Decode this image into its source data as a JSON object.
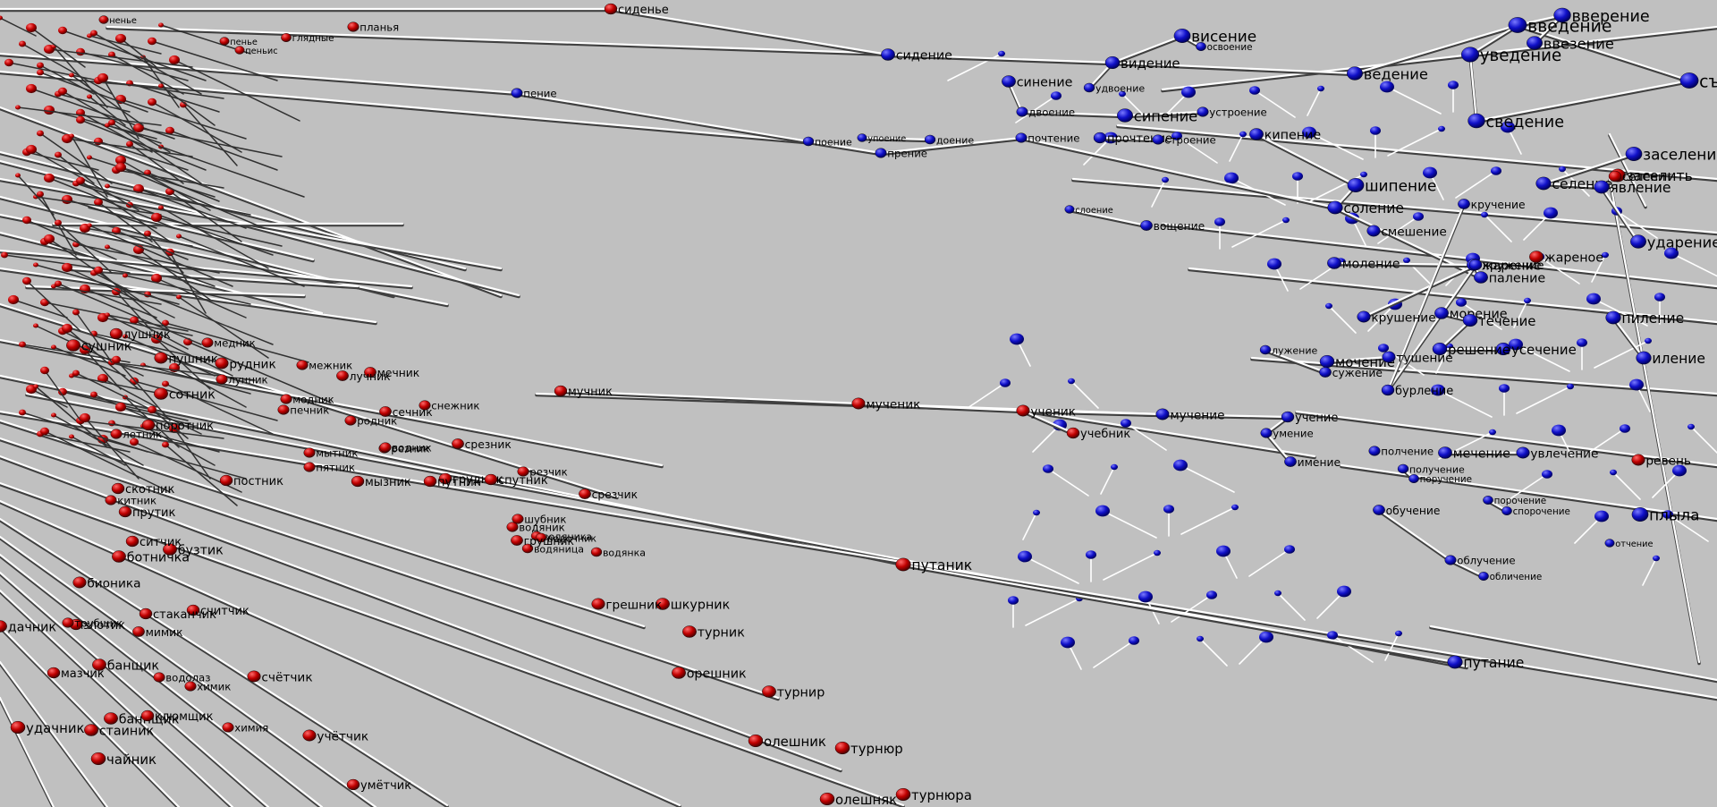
{
  "colors": {
    "background": "#c0c0c0",
    "red_node": "#d80000",
    "blue_node": "#1616d0",
    "edge": "#ffffff",
    "edge_shadow": "#404040"
  },
  "nodes": [
    {
      "id": "n1",
      "label": "сиденье",
      "color": "red"
    },
    {
      "id": "n2",
      "label": "сидение",
      "color": "blue"
    },
    {
      "id": "n3",
      "label": "пение",
      "color": "blue"
    },
    {
      "id": "n4",
      "label": "поение",
      "color": "blue"
    },
    {
      "id": "n5",
      "label": "упоение",
      "color": "blue"
    },
    {
      "id": "n6",
      "label": "доение",
      "color": "blue"
    },
    {
      "id": "n7",
      "label": "прение",
      "color": "blue"
    },
    {
      "id": "n8",
      "label": "синение",
      "color": "blue"
    },
    {
      "id": "n9",
      "label": "двоение",
      "color": "blue"
    },
    {
      "id": "n10",
      "label": "видение",
      "color": "blue"
    },
    {
      "id": "n11",
      "label": "висение",
      "color": "blue"
    },
    {
      "id": "n12",
      "label": "освоение",
      "color": "blue"
    },
    {
      "id": "n13",
      "label": "удвоение",
      "color": "blue"
    },
    {
      "id": "n14",
      "label": "сипение",
      "color": "blue"
    },
    {
      "id": "n15",
      "label": "устроение",
      "color": "blue"
    },
    {
      "id": "n16",
      "label": "почтение",
      "color": "blue"
    },
    {
      "id": "n17",
      "label": "прочтение",
      "color": "blue"
    },
    {
      "id": "n18",
      "label": "строение",
      "color": "blue"
    },
    {
      "id": "n19",
      "label": "слоение",
      "color": "blue"
    },
    {
      "id": "n20",
      "label": "вощение",
      "color": "blue"
    },
    {
      "id": "n21",
      "label": "ведение",
      "color": "blue"
    },
    {
      "id": "n22",
      "label": "введение",
      "color": "blue"
    },
    {
      "id": "n23",
      "label": "уведение",
      "color": "blue"
    },
    {
      "id": "n24",
      "label": "вверение",
      "color": "blue"
    },
    {
      "id": "n25",
      "label": "ввезение",
      "color": "blue"
    },
    {
      "id": "n26",
      "label": "съедение",
      "color": "blue"
    },
    {
      "id": "n27",
      "label": "сведение",
      "color": "blue"
    },
    {
      "id": "n28",
      "label": "кипение",
      "color": "blue"
    },
    {
      "id": "n29",
      "label": "шипение",
      "color": "blue"
    },
    {
      "id": "n30",
      "label": "соление",
      "color": "blue"
    },
    {
      "id": "n31",
      "label": "паление",
      "color": "blue"
    },
    {
      "id": "n32",
      "label": "моление",
      "color": "blue"
    },
    {
      "id": "n33",
      "label": "жарение",
      "color": "blue"
    },
    {
      "id": "n34",
      "label": "смешение",
      "color": "blue"
    },
    {
      "id": "n35",
      "label": "морение",
      "color": "blue"
    },
    {
      "id": "n36",
      "label": "течение",
      "color": "blue"
    },
    {
      "id": "n37",
      "label": "усечение",
      "color": "blue"
    },
    {
      "id": "n38",
      "label": "решение",
      "color": "blue"
    },
    {
      "id": "n39",
      "label": "мочение",
      "color": "blue"
    },
    {
      "id": "n40",
      "label": "тушение",
      "color": "blue"
    },
    {
      "id": "n41",
      "label": "сужение",
      "color": "blue"
    },
    {
      "id": "n42",
      "label": "лужение",
      "color": "blue"
    },
    {
      "id": "n43",
      "label": "мучение",
      "color": "blue"
    },
    {
      "id": "n44",
      "label": "учение",
      "color": "blue"
    },
    {
      "id": "n45",
      "label": "умение",
      "color": "blue"
    },
    {
      "id": "n46",
      "label": "имение",
      "color": "blue"
    },
    {
      "id": "n47",
      "label": "полчение",
      "color": "blue"
    },
    {
      "id": "n48",
      "label": "мечение",
      "color": "blue"
    },
    {
      "id": "n49",
      "label": "увлечение",
      "color": "blue"
    },
    {
      "id": "n50",
      "label": "получение",
      "color": "blue"
    },
    {
      "id": "n51",
      "label": "поручение",
      "color": "blue"
    },
    {
      "id": "n52",
      "label": "обучение",
      "color": "blue"
    },
    {
      "id": "n53",
      "label": "порочение",
      "color": "blue"
    },
    {
      "id": "n54",
      "label": "спорочение",
      "color": "blue"
    },
    {
      "id": "n55",
      "label": "облучение",
      "color": "blue"
    },
    {
      "id": "n56",
      "label": "обличение",
      "color": "blue"
    },
    {
      "id": "n57",
      "label": "путание",
      "color": "blue"
    },
    {
      "id": "n58",
      "label": "плыла",
      "color": "blue"
    },
    {
      "id": "n59",
      "label": "отчение",
      "color": "blue"
    },
    {
      "id": "n60",
      "label": "заселение",
      "color": "blue"
    },
    {
      "id": "n61",
      "label": "селение",
      "color": "blue"
    },
    {
      "id": "n62",
      "label": "заселить",
      "color": "red"
    },
    {
      "id": "n63",
      "label": "явление",
      "color": "blue"
    },
    {
      "id": "n64",
      "label": "ударение",
      "color": "blue"
    },
    {
      "id": "n65",
      "label": "пиление",
      "color": "blue"
    },
    {
      "id": "n66",
      "label": "иление",
      "color": "blue"
    },
    {
      "id": "n67",
      "label": "крушение",
      "color": "blue"
    },
    {
      "id": "n68",
      "label": "кружение",
      "color": "blue"
    },
    {
      "id": "n69",
      "label": "бурление",
      "color": "blue"
    },
    {
      "id": "n70",
      "label": "кручение",
      "color": "blue"
    },
    {
      "id": "n71",
      "label": "мученик",
      "color": "red"
    },
    {
      "id": "n72",
      "label": "ученик",
      "color": "red"
    },
    {
      "id": "n73",
      "label": "учебник",
      "color": "red"
    },
    {
      "id": "n74",
      "label": "мучник",
      "color": "red"
    },
    {
      "id": "n75",
      "label": "путаник",
      "color": "red"
    },
    {
      "id": "n76",
      "label": "ревень",
      "color": "red"
    },
    {
      "id": "n77",
      "label": "жареное",
      "color": "red"
    },
    {
      "id": "n78",
      "label": "селенит",
      "color": "red"
    },
    {
      "id": "n79",
      "label": "резчик",
      "color": "red"
    },
    {
      "id": "n80",
      "label": "срезчик",
      "color": "red"
    },
    {
      "id": "n81",
      "label": "срезник",
      "color": "red"
    },
    {
      "id": "n82",
      "label": "резник",
      "color": "red"
    },
    {
      "id": "n83",
      "label": "снежник",
      "color": "red"
    },
    {
      "id": "n84",
      "label": "межник",
      "color": "red"
    },
    {
      "id": "n85",
      "label": "мечник",
      "color": "red"
    },
    {
      "id": "n86",
      "label": "лучник",
      "color": "red"
    },
    {
      "id": "n87",
      "label": "медник",
      "color": "red"
    },
    {
      "id": "n88",
      "label": "пушник",
      "color": "red"
    },
    {
      "id": "n89",
      "label": "рудник",
      "color": "red"
    },
    {
      "id": "n90",
      "label": "лунник",
      "color": "red"
    },
    {
      "id": "n91",
      "label": "модник",
      "color": "red"
    },
    {
      "id": "n92",
      "label": "печник",
      "color": "red"
    },
    {
      "id": "n93",
      "label": "родник",
      "color": "red"
    },
    {
      "id": "n94",
      "label": "сечник",
      "color": "red"
    },
    {
      "id": "n95",
      "label": "водник",
      "color": "red"
    },
    {
      "id": "n96",
      "label": "мытник",
      "color": "red"
    },
    {
      "id": "n97",
      "label": "пятник",
      "color": "red"
    },
    {
      "id": "n98",
      "label": "постник",
      "color": "red"
    },
    {
      "id": "n99",
      "label": "мызник",
      "color": "red"
    },
    {
      "id": "n100",
      "label": "грудник",
      "color": "red"
    },
    {
      "id": "n101",
      "label": "путник",
      "color": "red"
    },
    {
      "id": "n102",
      "label": "спутник",
      "color": "red"
    },
    {
      "id": "n103",
      "label": "водяник",
      "color": "red"
    },
    {
      "id": "n104",
      "label": "водяника",
      "color": "red"
    },
    {
      "id": "n105",
      "label": "водяница",
      "color": "red"
    },
    {
      "id": "n106",
      "label": "водянка",
      "color": "red"
    },
    {
      "id": "n107",
      "label": "водочник",
      "color": "red"
    },
    {
      "id": "n108",
      "label": "шубник",
      "color": "red"
    },
    {
      "id": "n109",
      "label": "грушник",
      "color": "red"
    },
    {
      "id": "n110",
      "label": "шкурник",
      "color": "red"
    },
    {
      "id": "n111",
      "label": "грешник",
      "color": "red"
    },
    {
      "id": "n112",
      "label": "турник",
      "color": "red"
    },
    {
      "id": "n113",
      "label": "орешник",
      "color": "red"
    },
    {
      "id": "n114",
      "label": "турнир",
      "color": "red"
    },
    {
      "id": "n115",
      "label": "олешник",
      "color": "red"
    },
    {
      "id": "n116",
      "label": "турнюр",
      "color": "red"
    },
    {
      "id": "n117",
      "label": "олешняк",
      "color": "red"
    },
    {
      "id": "n118",
      "label": "турнюра",
      "color": "red"
    },
    {
      "id": "n119",
      "label": "счётчик",
      "color": "red"
    },
    {
      "id": "n120",
      "label": "учётчик",
      "color": "red"
    },
    {
      "id": "n121",
      "label": "умётчик",
      "color": "red"
    },
    {
      "id": "n122",
      "label": "химик",
      "color": "red"
    },
    {
      "id": "n123",
      "label": "химия",
      "color": "red"
    },
    {
      "id": "n124",
      "label": "мимик",
      "color": "red"
    },
    {
      "id": "n125",
      "label": "считчик",
      "color": "red"
    },
    {
      "id": "n126",
      "label": "банщик",
      "color": "red"
    },
    {
      "id": "n127",
      "label": "баннщик",
      "color": "red"
    },
    {
      "id": "n128",
      "label": "чайник",
      "color": "red"
    },
    {
      "id": "n129",
      "label": "дачник",
      "color": "red"
    },
    {
      "id": "n130",
      "label": "удачник",
      "color": "red"
    },
    {
      "id": "n131",
      "label": "стаиник",
      "color": "red"
    },
    {
      "id": "n132",
      "label": "ботничка",
      "color": "red"
    },
    {
      "id": "n133",
      "label": "бузтик",
      "color": "red"
    },
    {
      "id": "n134",
      "label": "ситчик",
      "color": "red"
    },
    {
      "id": "n135",
      "label": "прутик",
      "color": "red"
    },
    {
      "id": "n136",
      "label": "скотник",
      "color": "red"
    },
    {
      "id": "n137",
      "label": "китник",
      "color": "red"
    },
    {
      "id": "n138",
      "label": "поротник",
      "color": "red"
    },
    {
      "id": "n139",
      "label": "сотник",
      "color": "red"
    },
    {
      "id": "n140",
      "label": "летник",
      "color": "red"
    },
    {
      "id": "n141",
      "label": "сушник",
      "color": "red"
    },
    {
      "id": "n142",
      "label": "лушник",
      "color": "red"
    },
    {
      "id": "n143",
      "label": "планья",
      "color": "red"
    },
    {
      "id": "n144",
      "label": "глядные",
      "color": "red"
    },
    {
      "id": "n145",
      "label": "пенье",
      "color": "red"
    },
    {
      "id": "n146",
      "label": "пеньис",
      "color": "red"
    },
    {
      "id": "n147",
      "label": "ненье",
      "color": "red"
    },
    {
      "id": "n148",
      "label": "бионика",
      "color": "red"
    },
    {
      "id": "n149",
      "label": "стаканчик",
      "color": "red"
    },
    {
      "id": "n150",
      "label": "злотик",
      "color": "red"
    },
    {
      "id": "n151",
      "label": "трубщик",
      "color": "red"
    },
    {
      "id": "n152",
      "label": "мазчик",
      "color": "red"
    },
    {
      "id": "n153",
      "label": "клюмщик",
      "color": "red"
    },
    {
      "id": "n154",
      "label": "водолаз",
      "color": "red"
    }
  ],
  "labels": [
    {
      "node": "n1"
    },
    {
      "node": "n2"
    },
    {
      "node": "n3"
    },
    {
      "node": "n4"
    },
    {
      "node": "n5"
    },
    {
      "node": "n6"
    },
    {
      "node": "n7"
    },
    {
      "node": "n8"
    },
    {
      "node": "n9"
    },
    {
      "node": "n10"
    },
    {
      "node": "n11"
    },
    {
      "node": "n12"
    },
    {
      "node": "n13"
    },
    {
      "node": "n14"
    },
    {
      "node": "n15"
    },
    {
      "node": "n16"
    },
    {
      "node": "n17"
    },
    {
      "node": "n18"
    },
    {
      "node": "n19"
    },
    {
      "node": "n20"
    },
    {
      "node": "n21"
    },
    {
      "node": "n22"
    },
    {
      "node": "n23"
    },
    {
      "node": "n24"
    },
    {
      "node": "n25"
    },
    {
      "node": "n26"
    },
    {
      "node": "n27"
    },
    {
      "node": "n28"
    },
    {
      "node": "n29"
    },
    {
      "node": "n30"
    },
    {
      "node": "n31"
    },
    {
      "node": "n32"
    },
    {
      "node": "n33"
    },
    {
      "node": "n34"
    },
    {
      "node": "n35"
    },
    {
      "node": "n36"
    },
    {
      "node": "n37"
    },
    {
      "node": "n38"
    },
    {
      "node": "n39"
    },
    {
      "node": "n40"
    },
    {
      "node": "n41"
    },
    {
      "node": "n42"
    },
    {
      "node": "n43"
    },
    {
      "node": "n44"
    },
    {
      "node": "n45"
    },
    {
      "node": "n46"
    },
    {
      "node": "n47"
    },
    {
      "node": "n48"
    },
    {
      "node": "n49"
    },
    {
      "node": "n50"
    },
    {
      "node": "n51"
    },
    {
      "node": "n52"
    },
    {
      "node": "n53"
    },
    {
      "node": "n54"
    },
    {
      "node": "n55"
    },
    {
      "node": "n56"
    },
    {
      "node": "n57"
    },
    {
      "node": "n58"
    },
    {
      "node": "n59"
    },
    {
      "node": "n60"
    },
    {
      "node": "n61"
    },
    {
      "node": "n62"
    },
    {
      "node": "n63"
    },
    {
      "node": "n64"
    },
    {
      "node": "n65"
    },
    {
      "node": "n66"
    },
    {
      "node": "n67"
    },
    {
      "node": "n68"
    },
    {
      "node": "n69"
    },
    {
      "node": "n70"
    },
    {
      "node": "n71"
    },
    {
      "node": "n72"
    },
    {
      "node": "n73"
    },
    {
      "node": "n74"
    },
    {
      "node": "n75"
    },
    {
      "node": "n76"
    },
    {
      "node": "n77"
    },
    {
      "node": "n78"
    },
    {
      "node": "n79"
    },
    {
      "node": "n80"
    },
    {
      "node": "n81"
    },
    {
      "node": "n82"
    },
    {
      "node": "n83"
    },
    {
      "node": "n84"
    },
    {
      "node": "n85"
    },
    {
      "node": "n86"
    },
    {
      "node": "n87"
    },
    {
      "node": "n88"
    },
    {
      "node": "n89"
    },
    {
      "node": "n90"
    },
    {
      "node": "n91"
    },
    {
      "node": "n92"
    },
    {
      "node": "n93"
    },
    {
      "node": "n94"
    },
    {
      "node": "n95"
    },
    {
      "node": "n96"
    },
    {
      "node": "n97"
    },
    {
      "node": "n98"
    },
    {
      "node": "n99"
    },
    {
      "node": "n100"
    },
    {
      "node": "n101"
    },
    {
      "node": "n102"
    },
    {
      "node": "n103"
    },
    {
      "node": "n104"
    },
    {
      "node": "n105"
    },
    {
      "node": "n106"
    },
    {
      "node": "n107"
    },
    {
      "node": "n108"
    },
    {
      "node": "n109"
    },
    {
      "node": "n110"
    },
    {
      "node": "n111"
    },
    {
      "node": "n112"
    },
    {
      "node": "n113"
    },
    {
      "node": "n114"
    },
    {
      "node": "n115"
    },
    {
      "node": "n116"
    },
    {
      "node": "n117"
    },
    {
      "node": "n118"
    },
    {
      "node": "n119"
    },
    {
      "node": "n120"
    },
    {
      "node": "n121"
    },
    {
      "node": "n122"
    },
    {
      "node": "n123"
    },
    {
      "node": "n124"
    },
    {
      "node": "n125"
    },
    {
      "node": "n126"
    },
    {
      "node": "n127"
    },
    {
      "node": "n128"
    },
    {
      "node": "n129"
    },
    {
      "node": "n130"
    },
    {
      "node": "n131"
    },
    {
      "node": "n132"
    },
    {
      "node": "n133"
    },
    {
      "node": "n134"
    },
    {
      "node": "n135"
    },
    {
      "node": "n136"
    },
    {
      "node": "n137"
    },
    {
      "node": "n138"
    },
    {
      "node": "n139"
    },
    {
      "node": "n140"
    },
    {
      "node": "n141"
    },
    {
      "node": "n142"
    },
    {
      "node": "n143"
    },
    {
      "node": "n144"
    },
    {
      "node": "n145"
    },
    {
      "node": "n146"
    },
    {
      "node": "n147"
    },
    {
      "node": "n148"
    },
    {
      "node": "n149"
    },
    {
      "node": "n150"
    },
    {
      "node": "n151"
    },
    {
      "node": "n152"
    },
    {
      "node": "n153"
    },
    {
      "node": "n154"
    }
  ],
  "edges": [
    [
      "n1",
      "n2"
    ],
    [
      "n2",
      "n10"
    ],
    [
      "n10",
      "n21"
    ],
    [
      "n3",
      "n4"
    ],
    [
      "n4",
      "n7"
    ],
    [
      "n7",
      "n16"
    ],
    [
      "n16",
      "n30"
    ],
    [
      "n74",
      "n71"
    ],
    [
      "n71",
      "n72"
    ],
    [
      "n72",
      "n43"
    ],
    [
      "n72",
      "n73"
    ],
    [
      "n75",
      "n57"
    ],
    [
      "n12",
      "n11"
    ],
    [
      "n11",
      "n10"
    ],
    [
      "n21",
      "n22"
    ],
    [
      "n22",
      "n23"
    ],
    [
      "n22",
      "n26"
    ],
    [
      "n23",
      "n27"
    ],
    [
      "n26",
      "n27"
    ],
    [
      "n24",
      "n25"
    ],
    [
      "n24",
      "n22"
    ],
    [
      "n28",
      "n29"
    ],
    [
      "n29",
      "n30"
    ],
    [
      "n30",
      "n31"
    ],
    [
      "n31",
      "n33"
    ],
    [
      "n33",
      "n32"
    ],
    [
      "n35",
      "n36"
    ],
    [
      "n36",
      "n38"
    ],
    [
      "n38",
      "n37"
    ],
    [
      "n39",
      "n40"
    ],
    [
      "n41",
      "n42"
    ],
    [
      "n43",
      "n44"
    ],
    [
      "n44",
      "n45"
    ],
    [
      "n45",
      "n46"
    ],
    [
      "n48",
      "n49"
    ],
    [
      "n50",
      "n51"
    ],
    [
      "n52",
      "n55"
    ],
    [
      "n55",
      "n56"
    ],
    [
      "n53",
      "n54"
    ],
    [
      "n8",
      "n9"
    ],
    [
      "n9",
      "n14"
    ],
    [
      "n13",
      "n10"
    ],
    [
      "n14",
      "n15"
    ],
    [
      "n17",
      "n18"
    ],
    [
      "n19",
      "n20"
    ],
    [
      "n6",
      "n5"
    ],
    [
      "n61",
      "n60"
    ],
    [
      "n61",
      "n63"
    ],
    [
      "n63",
      "n64"
    ],
    [
      "n65",
      "n66"
    ],
    [
      "n67",
      "n68"
    ],
    [
      "n68",
      "n69"
    ],
    [
      "n69",
      "n70"
    ]
  ]
}
